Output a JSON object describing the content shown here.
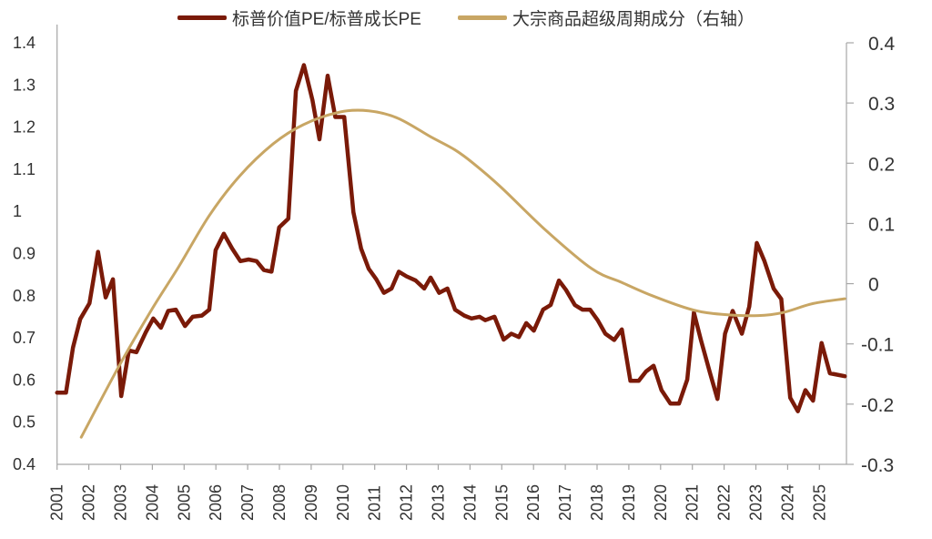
{
  "chart_data": {
    "type": "line",
    "title": "",
    "legend_position": "top",
    "grid": false,
    "x_axis": {
      "range": [
        2001,
        2025.85
      ],
      "tick_labels": [
        "2001",
        "2002",
        "2003",
        "2004",
        "2005",
        "2006",
        "2007",
        "2008",
        "2009",
        "2010",
        "2011",
        "2012",
        "2013",
        "2014",
        "2015",
        "2016",
        "2017",
        "2018",
        "2019",
        "2020",
        "2021",
        "2022",
        "2023",
        "2024",
        "2025"
      ]
    },
    "y_left": {
      "range": [
        0.4,
        1.4
      ],
      "tick_labels": [
        "0.4",
        "0.5",
        "0.6",
        "0.7",
        "0.8",
        "0.9",
        "1",
        "1.1",
        "1.2",
        "1.3",
        "1.4"
      ]
    },
    "y_right": {
      "range": [
        -0.3,
        0.4
      ],
      "tick_labels": [
        "-0.3",
        "-0.2",
        "-0.1",
        "0",
        "0.1",
        "0.2",
        "0.3",
        "0.4"
      ]
    },
    "series": [
      {
        "name": "标普价值PE/标普成长PE",
        "axis": "left",
        "color": "#7A1A08",
        "points": [
          [
            2001.0,
            0.57
          ],
          [
            2001.28,
            0.57
          ],
          [
            2001.5,
            0.677
          ],
          [
            2001.73,
            0.745
          ],
          [
            2002.02,
            0.782
          ],
          [
            2002.29,
            0.904
          ],
          [
            2002.53,
            0.796
          ],
          [
            2002.76,
            0.839
          ],
          [
            2003.02,
            0.562
          ],
          [
            2003.26,
            0.67
          ],
          [
            2003.5,
            0.666
          ],
          [
            2003.79,
            0.713
          ],
          [
            2004.03,
            0.746
          ],
          [
            2004.27,
            0.724
          ],
          [
            2004.5,
            0.764
          ],
          [
            2004.74,
            0.767
          ],
          [
            2005.03,
            0.728
          ],
          [
            2005.27,
            0.75
          ],
          [
            2005.56,
            0.753
          ],
          [
            2005.79,
            0.767
          ],
          [
            2005.99,
            0.908
          ],
          [
            2006.25,
            0.947
          ],
          [
            2006.51,
            0.912
          ],
          [
            2006.77,
            0.882
          ],
          [
            2007.03,
            0.886
          ],
          [
            2007.28,
            0.882
          ],
          [
            2007.51,
            0.861
          ],
          [
            2007.75,
            0.857
          ],
          [
            2007.99,
            0.962
          ],
          [
            2008.28,
            0.983
          ],
          [
            2008.52,
            1.286
          ],
          [
            2008.77,
            1.347
          ],
          [
            2009.04,
            1.264
          ],
          [
            2009.26,
            1.171
          ],
          [
            2009.52,
            1.322
          ],
          [
            2009.76,
            1.224
          ],
          [
            2010.04,
            1.224
          ],
          [
            2010.33,
            0.998
          ],
          [
            2010.57,
            0.912
          ],
          [
            2010.81,
            0.864
          ],
          [
            2011.05,
            0.839
          ],
          [
            2011.29,
            0.807
          ],
          [
            2011.53,
            0.817
          ],
          [
            2011.76,
            0.857
          ],
          [
            2012.0,
            0.846
          ],
          [
            2012.29,
            0.836
          ],
          [
            2012.56,
            0.817
          ],
          [
            2012.76,
            0.843
          ],
          [
            2013.03,
            0.807
          ],
          [
            2013.29,
            0.817
          ],
          [
            2013.53,
            0.767
          ],
          [
            2013.82,
            0.753
          ],
          [
            2014.05,
            0.746
          ],
          [
            2014.3,
            0.75
          ],
          [
            2014.48,
            0.742
          ],
          [
            2014.77,
            0.75
          ],
          [
            2015.06,
            0.696
          ],
          [
            2015.3,
            0.71
          ],
          [
            2015.54,
            0.702
          ],
          [
            2015.77,
            0.735
          ],
          [
            2016.01,
            0.717
          ],
          [
            2016.3,
            0.767
          ],
          [
            2016.54,
            0.778
          ],
          [
            2016.8,
            0.836
          ],
          [
            2017.02,
            0.814
          ],
          [
            2017.3,
            0.778
          ],
          [
            2017.54,
            0.767
          ],
          [
            2017.78,
            0.767
          ],
          [
            2018.02,
            0.742
          ],
          [
            2018.26,
            0.71
          ],
          [
            2018.54,
            0.695
          ],
          [
            2018.78,
            0.72
          ],
          [
            2019.05,
            0.598
          ],
          [
            2019.31,
            0.598
          ],
          [
            2019.54,
            0.62
          ],
          [
            2019.78,
            0.634
          ],
          [
            2020.03,
            0.576
          ],
          [
            2020.31,
            0.544
          ],
          [
            2020.58,
            0.544
          ],
          [
            2020.84,
            0.601
          ],
          [
            2021.05,
            0.76
          ],
          [
            2021.27,
            0.695
          ],
          [
            2021.56,
            0.616
          ],
          [
            2021.79,
            0.555
          ],
          [
            2022.03,
            0.71
          ],
          [
            2022.27,
            0.764
          ],
          [
            2022.56,
            0.71
          ],
          [
            2022.79,
            0.774
          ],
          [
            2023.03,
            0.925
          ],
          [
            2023.27,
            0.882
          ],
          [
            2023.56,
            0.817
          ],
          [
            2023.8,
            0.792
          ],
          [
            2024.08,
            0.558
          ],
          [
            2024.32,
            0.526
          ],
          [
            2024.56,
            0.576
          ],
          [
            2024.8,
            0.551
          ],
          [
            2025.07,
            0.688
          ],
          [
            2025.33,
            0.616
          ],
          [
            2025.8,
            0.609
          ]
        ]
      },
      {
        "name": "大宗商品超级周期成分（右轴）",
        "axis": "right",
        "color": "#C8A664",
        "points": [
          [
            2001.76,
            -0.255
          ],
          [
            2002.98,
            -0.134
          ],
          [
            2003.98,
            -0.043
          ],
          [
            2004.84,
            0.029
          ],
          [
            2005.79,
            0.113
          ],
          [
            2006.75,
            0.179
          ],
          [
            2007.8,
            0.232
          ],
          [
            2008.75,
            0.264
          ],
          [
            2009.9,
            0.285
          ],
          [
            2010.81,
            0.287
          ],
          [
            2011.72,
            0.275
          ],
          [
            2012.76,
            0.244
          ],
          [
            2013.53,
            0.222
          ],
          [
            2014.1,
            0.2
          ],
          [
            2014.96,
            0.161
          ],
          [
            2016.4,
            0.088
          ],
          [
            2017.83,
            0.025
          ],
          [
            2018.78,
            0.002
          ],
          [
            2019.74,
            -0.02
          ],
          [
            2020.98,
            -0.043
          ],
          [
            2021.93,
            -0.051
          ],
          [
            2023.08,
            -0.053
          ],
          [
            2023.85,
            -0.048
          ],
          [
            2024.8,
            -0.033
          ],
          [
            2025.8,
            -0.025
          ]
        ]
      }
    ]
  }
}
